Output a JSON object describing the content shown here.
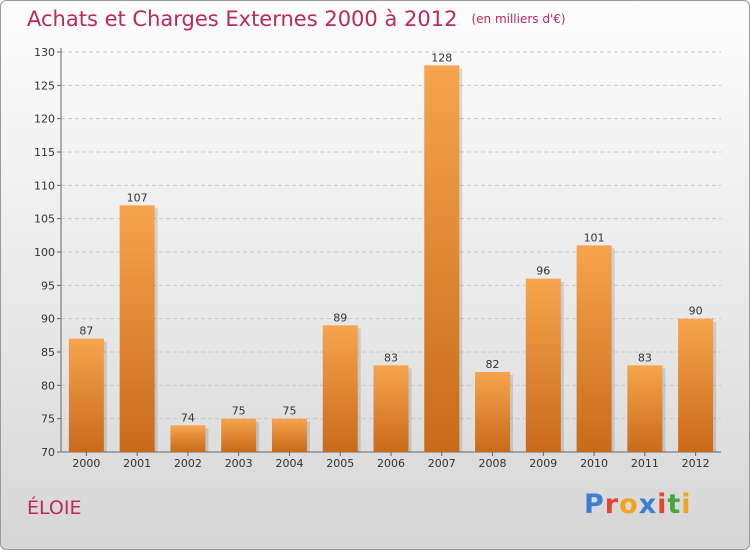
{
  "header": {
    "title": "Achats et Charges Externes 2000 à 2012",
    "subtitle": "(en milliers d'€)"
  },
  "footer": {
    "commune": "ÉLOIE",
    "brand": "Proxiti",
    "brand_colors": [
      "#3a7fd0",
      "#e2462f",
      "#f1a21f",
      "#3a7fd0",
      "#e2462f",
      "#4aa43a",
      "#f1a21f"
    ]
  },
  "colors": {
    "bar_top": "#f7a44e",
    "bar_bottom": "#c96a1a",
    "title": "#c0285a"
  },
  "chart_data": {
    "type": "bar",
    "title": "Achats et Charges Externes 2000 à 2012",
    "xlabel": "",
    "ylabel": "",
    "categories": [
      "2000",
      "2001",
      "2002",
      "2003",
      "2004",
      "2005",
      "2006",
      "2007",
      "2008",
      "2009",
      "2010",
      "2011",
      "2012"
    ],
    "values": [
      87,
      107,
      74,
      75,
      75,
      89,
      83,
      128,
      82,
      96,
      101,
      83,
      90
    ],
    "ylim": [
      70,
      130
    ],
    "yticks": [
      70,
      75,
      80,
      85,
      90,
      95,
      100,
      105,
      110,
      115,
      120,
      125,
      130
    ],
    "grid": true
  }
}
